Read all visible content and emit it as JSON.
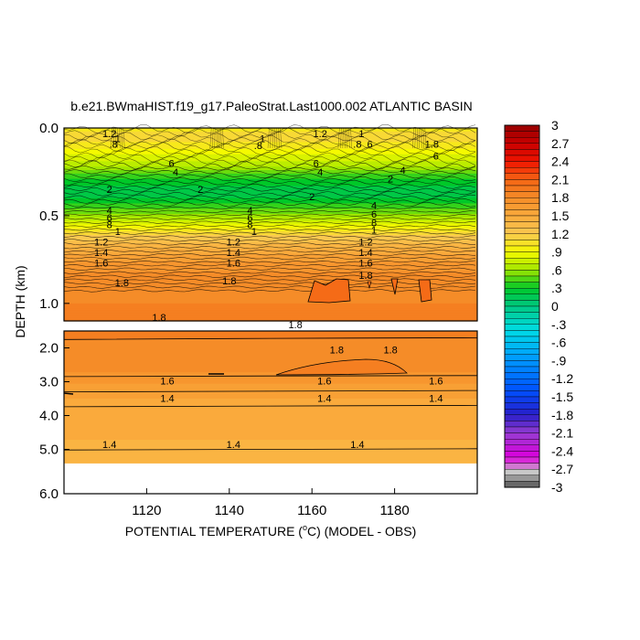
{
  "chart_data": {
    "type": "heatmap",
    "title": "b.e21.BWmaHIST.f19_g17.PaleoStrat.Last1000.002 ATLANTIC BASIN",
    "xlabel": {
      "prefix": "POTENTIAL TEMPERATURE (",
      "degree": "o",
      "suffix": "C) (MODEL - OBS)"
    },
    "ylabel": "DEPTH (km)",
    "x_range": [
      1100,
      1200
    ],
    "x_ticks": [
      1120,
      1140,
      1160,
      1180
    ],
    "x_tick_labels": [
      "1120",
      "1140",
      "1160",
      "1180"
    ],
    "upper_panel": {
      "depth_range_km": [
        0.0,
        1.1
      ],
      "y_ticks": [
        0.0,
        0.5,
        1.0
      ],
      "y_tick_labels": [
        "0.0",
        "0.5",
        "1.0"
      ]
    },
    "lower_panel": {
      "depth_range_km": [
        1.5,
        5.4
      ],
      "y_ticks": [
        2.0,
        3.0,
        4.0,
        5.0
      ],
      "y_tick_labels": [
        "2.0",
        "3.0",
        "4.0",
        "5.0"
      ]
    },
    "axis_max_label": "6.0",
    "colorbar": {
      "min": -3,
      "max": 3,
      "step": 0.1,
      "tick_labels": [
        "3",
        "2.7",
        "2.4",
        "2.1",
        "1.8",
        "1.5",
        "1.2",
        ".9",
        ".6",
        ".3",
        "0",
        "-.3",
        "-.6",
        "-.9",
        "-1.2",
        "-1.5",
        "-1.8",
        "-2.1",
        "-2.4",
        "-2.7",
        "-3"
      ]
    },
    "upper_profile": [
      {
        "depth": 0.0,
        "value": 1.0
      },
      {
        "depth": 0.05,
        "value": 1.12
      },
      {
        "depth": 0.1,
        "value": 1.0
      },
      {
        "depth": 0.15,
        "value": 0.85
      },
      {
        "depth": 0.2,
        "value": 0.72
      },
      {
        "depth": 0.25,
        "value": 0.5
      },
      {
        "depth": 0.3,
        "value": 0.32
      },
      {
        "depth": 0.35,
        "value": 0.2
      },
      {
        "depth": 0.4,
        "value": 0.25
      },
      {
        "depth": 0.45,
        "value": 0.4
      },
      {
        "depth": 0.5,
        "value": 0.58
      },
      {
        "depth": 0.55,
        "value": 0.85
      },
      {
        "depth": 0.6,
        "value": 1.1
      },
      {
        "depth": 0.65,
        "value": 1.3
      },
      {
        "depth": 0.7,
        "value": 1.5
      },
      {
        "depth": 0.75,
        "value": 1.62
      },
      {
        "depth": 0.8,
        "value": 1.72
      },
      {
        "depth": 0.85,
        "value": 1.8
      },
      {
        "depth": 0.9,
        "value": 1.83
      },
      {
        "depth": 1.0,
        "value": 1.85
      },
      {
        "depth": 1.1,
        "value": 1.86
      }
    ],
    "lower_profile": [
      {
        "depth": 1.5,
        "value": 1.86
      },
      {
        "depth": 2.5,
        "value": 1.82
      },
      {
        "depth": 3.0,
        "value": 1.66
      },
      {
        "depth": 3.5,
        "value": 1.55
      },
      {
        "depth": 4.0,
        "value": 1.48
      },
      {
        "depth": 5.4,
        "value": 1.42
      }
    ],
    "contour_labels": {
      "upper": [
        {
          "x": 1111,
          "depth": 0.03,
          "text": "1.2"
        },
        {
          "x": 1112,
          "depth": 0.09,
          "text": ".8"
        },
        {
          "x": 1113,
          "depth": 0.06,
          "text": "1"
        },
        {
          "x": 1147,
          "depth": 0.1,
          "text": ".8"
        },
        {
          "x": 1148,
          "depth": 0.06,
          "text": "1"
        },
        {
          "x": 1162,
          "depth": 0.03,
          "text": "1.2"
        },
        {
          "x": 1172,
          "depth": 0.03,
          "text": "1"
        },
        {
          "x": 1171,
          "depth": 0.09,
          "text": ".8"
        },
        {
          "x": 1174,
          "depth": 0.09,
          "text": "6"
        },
        {
          "x": 1189,
          "depth": 0.09,
          "text": "1.8"
        },
        {
          "x": 1190,
          "depth": 0.16,
          "text": "6"
        },
        {
          "x": 1126,
          "depth": 0.2,
          "text": "6"
        },
        {
          "x": 1127,
          "depth": 0.25,
          "text": "4"
        },
        {
          "x": 1111,
          "depth": 0.35,
          "text": "2"
        },
        {
          "x": 1133,
          "depth": 0.35,
          "text": "2"
        },
        {
          "x": 1161,
          "depth": 0.2,
          "text": "6"
        },
        {
          "x": 1162,
          "depth": 0.25,
          "text": "4"
        },
        {
          "x": 1160,
          "depth": 0.39,
          "text": "2"
        },
        {
          "x": 1182,
          "depth": 0.24,
          "text": "4"
        },
        {
          "x": 1179,
          "depth": 0.29,
          "text": "2"
        },
        {
          "x": 1175,
          "depth": 0.44,
          "text": "4"
        },
        {
          "x": 1175,
          "depth": 0.49,
          "text": "6"
        },
        {
          "x": 1175,
          "depth": 0.54,
          "text": "8"
        },
        {
          "x": 1175,
          "depth": 0.58,
          "text": "1"
        },
        {
          "x": 1173,
          "depth": 0.65,
          "text": "1.2"
        },
        {
          "x": 1173,
          "depth": 0.71,
          "text": "1.4"
        },
        {
          "x": 1173,
          "depth": 0.77,
          "text": "1.6"
        },
        {
          "x": 1173,
          "depth": 0.84,
          "text": "1.8"
        },
        {
          "x": 1145,
          "depth": 0.47,
          "text": "4"
        },
        {
          "x": 1145,
          "depth": 0.51,
          "text": "6"
        },
        {
          "x": 1145,
          "depth": 0.55,
          "text": "8"
        },
        {
          "x": 1146,
          "depth": 0.59,
          "text": "1"
        },
        {
          "x": 1141,
          "depth": 0.65,
          "text": "1.2"
        },
        {
          "x": 1141,
          "depth": 0.71,
          "text": "1.4"
        },
        {
          "x": 1141,
          "depth": 0.77,
          "text": "1.6"
        },
        {
          "x": 1140,
          "depth": 0.87,
          "text": "1.8"
        },
        {
          "x": 1111,
          "depth": 0.47,
          "text": "4"
        },
        {
          "x": 1111,
          "depth": 0.51,
          "text": "6"
        },
        {
          "x": 1111,
          "depth": 0.55,
          "text": "8"
        },
        {
          "x": 1113,
          "depth": 0.59,
          "text": "1"
        },
        {
          "x": 1109,
          "depth": 0.65,
          "text": "1.2"
        },
        {
          "x": 1109,
          "depth": 0.71,
          "text": "1.4"
        },
        {
          "x": 1109,
          "depth": 0.77,
          "text": "1.6"
        },
        {
          "x": 1114,
          "depth": 0.88,
          "text": "1.8"
        },
        {
          "x": 1123,
          "depth": 1.08,
          "text": "1.8"
        },
        {
          "x": 1156,
          "depth": 1.12,
          "text": "1.8"
        }
      ],
      "lower": [
        {
          "x": 1166,
          "depth": 2.05,
          "text": "1.8"
        },
        {
          "x": 1179,
          "depth": 2.05,
          "text": "1.8"
        },
        {
          "x": 1125,
          "depth": 2.97,
          "text": "1.6"
        },
        {
          "x": 1163,
          "depth": 2.97,
          "text": "1.6"
        },
        {
          "x": 1190,
          "depth": 2.97,
          "text": "1.6"
        },
        {
          "x": 1125,
          "depth": 3.48,
          "text": "1.4"
        },
        {
          "x": 1163,
          "depth": 3.48,
          "text": "1.4"
        },
        {
          "x": 1190,
          "depth": 3.48,
          "text": "1.4"
        },
        {
          "x": 1111,
          "depth": 4.85,
          "text": "1.4"
        },
        {
          "x": 1141,
          "depth": 4.85,
          "text": "1.4"
        },
        {
          "x": 1171,
          "depth": 4.85,
          "text": "1.4"
        }
      ]
    }
  }
}
